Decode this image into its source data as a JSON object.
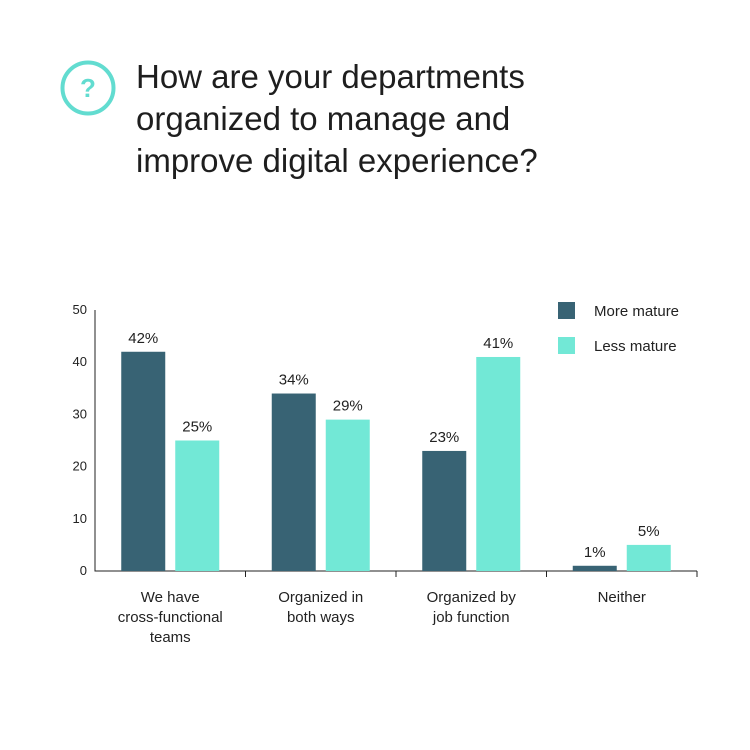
{
  "header": {
    "icon": "question-mark-icon",
    "icon_glyph": "?",
    "icon_color": "#62dcd0",
    "title_lines": [
      "How are your departments",
      "organized to manage and",
      "improve digital experience?"
    ]
  },
  "chart_data": {
    "type": "bar",
    "title": "",
    "xlabel": "",
    "ylabel": "",
    "ylim": [
      0,
      50
    ],
    "yticks": [
      0,
      10,
      20,
      30,
      40,
      50
    ],
    "grid": false,
    "legend_position": "top-right",
    "categories": [
      [
        "We have",
        "cross-functional",
        "teams"
      ],
      [
        "Organized in",
        "both ways"
      ],
      [
        "Organized by",
        "job function"
      ],
      [
        "Neither"
      ]
    ],
    "series": [
      {
        "name": "More mature",
        "color": "#386374",
        "values": [
          42,
          34,
          23,
          1
        ],
        "labels": [
          "42%",
          "34%",
          "23%",
          "1%"
        ]
      },
      {
        "name": "Less mature",
        "color": "#72e8d6",
        "values": [
          25,
          29,
          41,
          5
        ],
        "labels": [
          "25%",
          "29%",
          "41%",
          "5%"
        ]
      }
    ]
  }
}
